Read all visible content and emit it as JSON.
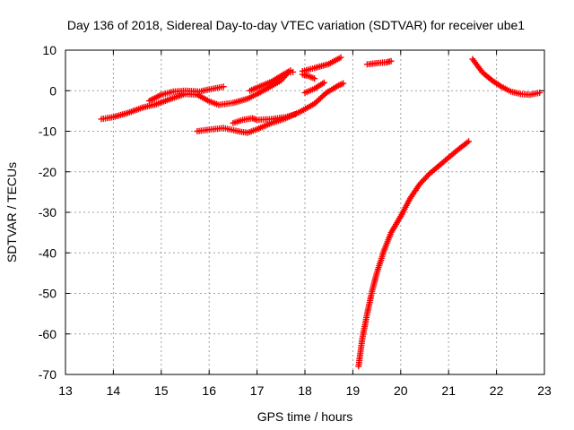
{
  "chart_data": {
    "type": "scatter",
    "title": "Day 136 of 2018, Sidereal Day-to-day VTEC variation (SDTVAR) for receiver ube1",
    "xlabel": "GPS time / hours",
    "ylabel": "SDTVAR / TECUs",
    "xlim": [
      13,
      23
    ],
    "ylim": [
      -70,
      10
    ],
    "xticks": [
      13,
      14,
      15,
      16,
      17,
      18,
      19,
      20,
      21,
      22,
      23
    ],
    "yticks": [
      -70,
      -60,
      -50,
      -40,
      -30,
      -20,
      -10,
      0,
      10
    ],
    "grid": true,
    "marker": "plus",
    "color": "#ff0000",
    "series": [
      {
        "name": "arc1",
        "points": [
          [
            13.75,
            -7
          ],
          [
            14.0,
            -6.5
          ],
          [
            14.3,
            -5.5
          ],
          [
            14.6,
            -4.2
          ],
          [
            14.9,
            -3.3
          ],
          [
            15.2,
            -2
          ],
          [
            15.5,
            -0.8
          ],
          [
            15.75,
            -1
          ],
          [
            16.0,
            -2.6
          ],
          [
            16.2,
            -3.5
          ],
          [
            16.5,
            -3
          ],
          [
            16.8,
            -2
          ],
          [
            17.0,
            -0.8
          ],
          [
            17.2,
            0.5
          ],
          [
            17.5,
            2.5
          ],
          [
            17.65,
            4.5
          ],
          [
            17.75,
            4.6
          ]
        ]
      },
      {
        "name": "arc2",
        "points": [
          [
            14.75,
            -2.5
          ],
          [
            15.0,
            -1
          ],
          [
            15.25,
            -0.2
          ],
          [
            15.5,
            0
          ],
          [
            15.8,
            -0.2
          ],
          [
            16.0,
            0.3
          ],
          [
            16.3,
            1
          ]
        ]
      },
      {
        "name": "arc3",
        "points": [
          [
            15.75,
            -10
          ],
          [
            16.0,
            -9.6
          ],
          [
            16.3,
            -9.2
          ],
          [
            16.6,
            -10
          ],
          [
            16.8,
            -10.4
          ],
          [
            17.0,
            -9.5
          ],
          [
            17.3,
            -8
          ],
          [
            17.6,
            -6.8
          ],
          [
            17.9,
            -5.2
          ],
          [
            18.2,
            -3.2
          ],
          [
            18.45,
            -0.5
          ],
          [
            18.7,
            1.3
          ],
          [
            18.8,
            1.8
          ]
        ]
      },
      {
        "name": "arc4",
        "points": [
          [
            16.5,
            -8
          ],
          [
            16.7,
            -7.2
          ],
          [
            16.9,
            -6.8
          ],
          [
            17.0,
            -7.2
          ],
          [
            17.3,
            -7
          ],
          [
            17.6,
            -6.5
          ],
          [
            17.8,
            -5.8
          ]
        ]
      },
      {
        "name": "arc5",
        "points": [
          [
            16.85,
            0
          ],
          [
            17.05,
            1
          ],
          [
            17.3,
            2.2
          ],
          [
            17.55,
            4
          ],
          [
            17.7,
            5
          ]
        ]
      },
      {
        "name": "arc6",
        "points": [
          [
            17.95,
            4.8
          ],
          [
            18.2,
            5.6
          ],
          [
            18.5,
            6.6
          ],
          [
            18.75,
            8.2
          ]
        ]
      },
      {
        "name": "arc7",
        "points": [
          [
            17.95,
            4
          ],
          [
            18.1,
            3.5
          ],
          [
            18.2,
            3
          ]
        ]
      },
      {
        "name": "arc8",
        "points": [
          [
            18.0,
            -0.5
          ],
          [
            18.2,
            0.5
          ],
          [
            18.4,
            2
          ]
        ]
      },
      {
        "name": "arc9",
        "points": [
          [
            19.3,
            6.5
          ],
          [
            19.5,
            6.8
          ],
          [
            19.7,
            7
          ],
          [
            19.8,
            7.3
          ]
        ]
      },
      {
        "name": "arc10",
        "points": [
          [
            19.12,
            -68
          ],
          [
            19.2,
            -61
          ],
          [
            19.3,
            -55
          ],
          [
            19.4,
            -49.5
          ],
          [
            19.5,
            -45
          ],
          [
            19.65,
            -39.5
          ],
          [
            19.8,
            -35
          ],
          [
            20.0,
            -31
          ],
          [
            20.2,
            -26.5
          ],
          [
            20.4,
            -23
          ],
          [
            20.6,
            -20.5
          ],
          [
            20.8,
            -18.5
          ],
          [
            21.0,
            -16.5
          ],
          [
            21.2,
            -14.5
          ],
          [
            21.42,
            -12.5
          ]
        ]
      },
      {
        "name": "arc11",
        "points": [
          [
            21.5,
            7.8
          ],
          [
            21.7,
            4.6
          ],
          [
            21.9,
            2.6
          ],
          [
            22.1,
            1
          ],
          [
            22.3,
            -0.2
          ],
          [
            22.5,
            -0.8
          ],
          [
            22.7,
            -1
          ],
          [
            22.9,
            -0.5
          ]
        ]
      }
    ]
  }
}
